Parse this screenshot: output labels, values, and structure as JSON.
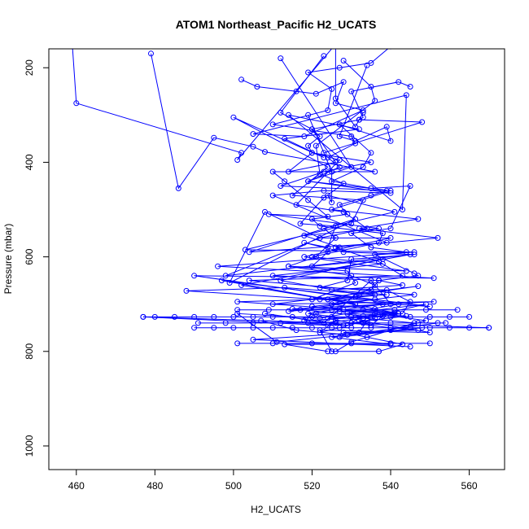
{
  "chart_data": {
    "type": "line",
    "title": "ATOM1 Northeast_Pacific H2_UCATS",
    "xlabel": "H2_UCATS",
    "ylabel": "Pressure (mbar)",
    "xlim": [
      453,
      569
    ],
    "ylim": [
      1050,
      160
    ],
    "y_reversed": true,
    "x_ticks": [
      460,
      480,
      500,
      520,
      540,
      560
    ],
    "y_ticks": [
      200,
      400,
      600,
      800,
      1000
    ],
    "grid": false,
    "series_color": "#0000ff",
    "marker": "open-circle",
    "series": [
      {
        "x": [
          459,
          460,
          502,
          501,
          526,
          526,
          531,
          533,
          532,
          548,
          523,
          519,
          525,
          525,
          524,
          541,
          523,
          526,
          521,
          514,
          529,
          531,
          520,
          536,
          514,
          540,
          535,
          523,
          538,
          536,
          536,
          527,
          522,
          526,
          524,
          477,
          565
        ],
        "y": [
          155,
          275,
          380,
          395,
          150,
          265,
          325,
          295,
          310,
          315,
          380,
          300,
          420,
          485,
          470,
          505,
          540,
          560,
          600,
          620,
          630,
          655,
          690,
          690,
          715,
          700,
          650,
          740,
          725,
          710,
          730,
          750,
          760,
          735,
          745,
          727,
          750
        ]
      },
      {
        "x": [
          479,
          486,
          495,
          505,
          508,
          536,
          510,
          513,
          519,
          524,
          509,
          537,
          518,
          527,
          524,
          520,
          538,
          512,
          532,
          547,
          510,
          551,
          515,
          533,
          529,
          508,
          528,
          507,
          516,
          529,
          552,
          525,
          540,
          513,
          524
        ],
        "y": [
          170,
          455,
          348,
          367,
          378,
          420,
          420,
          440,
          480,
          515,
          510,
          540,
          555,
          580,
          590,
          620,
          605,
          650,
          680,
          662,
          700,
          695,
          710,
          725,
          745,
          720,
          745,
          735,
          755,
          765,
          740,
          770,
          785,
          785,
          800
        ]
      },
      {
        "x": [
          502,
          506,
          516,
          521,
          528,
          526,
          533,
          518,
          505,
          544,
          543,
          514,
          532,
          513,
          523,
          500,
          524,
          515,
          533,
          530,
          503,
          546,
          496,
          551,
          490,
          542,
          522,
          501,
          511,
          548,
          527
        ],
        "y": [
          225,
          240,
          250,
          255,
          230,
          275,
          290,
          345,
          340,
          258,
          500,
          300,
          330,
          350,
          390,
          305,
          410,
          470,
          480,
          530,
          585,
          590,
          620,
          645,
          640,
          700,
          730,
          720,
          780,
          750,
          770
        ]
      },
      {
        "x": [
          512,
          530,
          519,
          540,
          523,
          510,
          539,
          504,
          531,
          499,
          508,
          522,
          498,
          545,
          502,
          531,
          497,
          550,
          488,
          513,
          536,
          522,
          501,
          527,
          519,
          534,
          532,
          505,
          545
        ],
        "y": [
          180,
          410,
          440,
          465,
          460,
          470,
          570,
          590,
          520,
          655,
          505,
          560,
          640,
          595,
          660,
          700,
          650,
          705,
          672,
          665,
          680,
          690,
          695,
          710,
          720,
          735,
          760,
          775,
          790
        ]
      },
      {
        "x": [
          523,
          512,
          520,
          526,
          514,
          520,
          527,
          516,
          528,
          534,
          522,
          540,
          518,
          544,
          514,
          530,
          536,
          531,
          525,
          542,
          527,
          521,
          518,
          538,
          535,
          532,
          550,
          522,
          525,
          537
        ],
        "y": [
          175,
          295,
          330,
          400,
          420,
          380,
          395,
          490,
          505,
          540,
          560,
          560,
          600,
          630,
          620,
          640,
          660,
          685,
          700,
          720,
          715,
          720,
          735,
          725,
          745,
          735,
          760,
          755,
          800,
          800
        ]
      },
      {
        "x": [
          534,
          527,
          531,
          539,
          540,
          527,
          535,
          533,
          525,
          535,
          545,
          540,
          530,
          535,
          544,
          536,
          546,
          547,
          537,
          543,
          525,
          539,
          524,
          538,
          528,
          541,
          531,
          546,
          530,
          526
        ],
        "y": [
          195,
          345,
          355,
          325,
          355,
          320,
          380,
          410,
          440,
          455,
          450,
          540,
          550,
          580,
          590,
          595,
          635,
          640,
          650,
          660,
          670,
          680,
          690,
          700,
          712,
          718,
          728,
          740,
          780,
          800
        ]
      },
      {
        "x": [
          528,
          535,
          536,
          521,
          522,
          528,
          523,
          517,
          526,
          524,
          518,
          528,
          546,
          530,
          529,
          522,
          539,
          545,
          543,
          533,
          549,
          529,
          544,
          530,
          540,
          547,
          528,
          543,
          537
        ],
        "y": [
          185,
          240,
          270,
          365,
          425,
          445,
          475,
          530,
          535,
          580,
          570,
          590,
          595,
          605,
          650,
          665,
          670,
          695,
          720,
          730,
          700,
          720,
          725,
          740,
          750,
          755,
          760,
          785,
          800
        ]
      },
      {
        "x": [
          545,
          542,
          530,
          533,
          532,
          520,
          522,
          519,
          520,
          535,
          523,
          512,
          539,
          535,
          527,
          529,
          520,
          522,
          538,
          537,
          520,
          538,
          510,
          537,
          535,
          524,
          542,
          524,
          530
        ],
        "y": [
          240,
          230,
          250,
          305,
          310,
          330,
          345,
          365,
          380,
          400,
          420,
          450,
          460,
          470,
          490,
          510,
          520,
          535,
          550,
          570,
          600,
          615,
          640,
          650,
          670,
          690,
          720,
          730,
          740
        ]
      },
      {
        "x": [
          540,
          535,
          527,
          519,
          525,
          524,
          510,
          530,
          531,
          524,
          527,
          519,
          540,
          525,
          547,
          532,
          552,
          526,
          537,
          543,
          504,
          546,
          520,
          536,
          549,
          540,
          534
        ],
        "y": [
          155,
          190,
          200,
          210,
          245,
          290,
          320,
          345,
          360,
          390,
          410,
          440,
          460,
          500,
          520,
          540,
          560,
          580,
          610,
          640,
          650,
          680,
          705,
          720,
          735,
          755,
          770
        ]
      },
      {
        "x": [
          477,
          480,
          485,
          490,
          495,
          500,
          505,
          510,
          515,
          520,
          525,
          530,
          535,
          540,
          545,
          550,
          555,
          560
        ],
        "y": [
          727,
          727,
          727,
          727,
          727,
          727,
          727,
          727,
          727,
          727,
          727,
          727,
          727,
          727,
          727,
          727,
          727,
          727
        ]
      },
      {
        "x": [
          490,
          495,
          500,
          505,
          510,
          515,
          520,
          525,
          530,
          535,
          540,
          545,
          550,
          555,
          560,
          565
        ],
        "y": [
          750,
          750,
          750,
          750,
          750,
          750,
          750,
          750,
          750,
          750,
          750,
          750,
          750,
          750,
          750,
          750
        ]
      },
      {
        "x": [
          491,
          498,
          505,
          512,
          519,
          526,
          533,
          540,
          547,
          554
        ],
        "y": [
          740,
          740,
          740,
          740,
          740,
          740,
          740,
          740,
          740,
          740
        ]
      },
      {
        "x": [
          501,
          510,
          520,
          530,
          540,
          550
        ],
        "y": [
          783,
          783,
          783,
          783,
          783,
          783
        ]
      },
      {
        "x": [
          501,
          509,
          517,
          525,
          533,
          541,
          549,
          557
        ],
        "y": [
          712,
          712,
          712,
          712,
          712,
          712,
          712,
          712
        ]
      }
    ]
  }
}
